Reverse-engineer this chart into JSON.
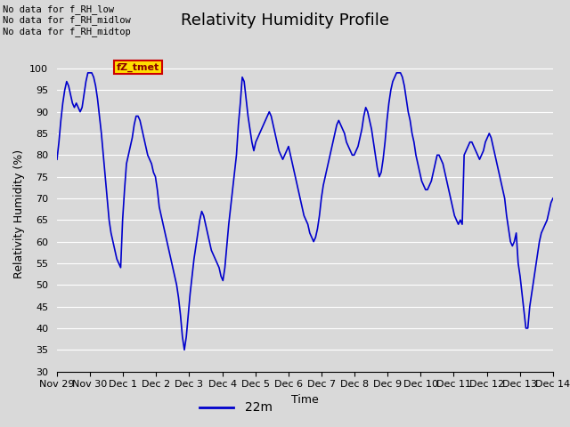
{
  "title": "Relativity Humidity Profile",
  "xlabel": "Time",
  "ylabel": "Relativity Humidity (%)",
  "legend_label": "22m",
  "ylim": [
    30,
    103
  ],
  "yticks": [
    30,
    35,
    40,
    45,
    50,
    55,
    60,
    65,
    70,
    75,
    80,
    85,
    90,
    95,
    100
  ],
  "line_color": "#0000cc",
  "line_width": 1.2,
  "bg_color": "#d9d9d9",
  "plot_bg_color": "#d9d9d9",
  "legend_bg": "#ffffff",
  "annotation_text": "No data for f_RH_low\nNo data for f_RH_midlow\nNo data for f_RH_midtop",
  "tooltip_text": "fZ_tmet",
  "x_tick_labels": [
    "Nov 29",
    "Nov 30",
    "Dec 1",
    "Dec 2",
    "Dec 3",
    "Dec 4",
    "Dec 5",
    "Dec 6",
    "Dec 7",
    "Dec 8",
    "Dec 9",
    "Dec 10",
    "Dec 11",
    "Dec 12",
    "Dec 13",
    "Dec 14"
  ],
  "x_tick_positions": [
    0,
    1,
    2,
    3,
    4,
    5,
    6,
    7,
    8,
    9,
    10,
    11,
    12,
    13,
    14,
    15
  ],
  "grid_color": "#ffffff",
  "grid_linewidth": 0.8,
  "title_fontsize": 13,
  "axis_fontsize": 9,
  "tick_fontsize": 8,
  "humidity_data": [
    79,
    83,
    88,
    92,
    95,
    97,
    96,
    94,
    92,
    91,
    92,
    91,
    90,
    91,
    94,
    97,
    99,
    99,
    99,
    98,
    96,
    93,
    89,
    85,
    80,
    75,
    70,
    65,
    62,
    60,
    58,
    56,
    55,
    54,
    65,
    72,
    78,
    80,
    82,
    84,
    87,
    89,
    89,
    88,
    86,
    84,
    82,
    80,
    79,
    78,
    76,
    75,
    72,
    68,
    66,
    64,
    62,
    60,
    58,
    56,
    54,
    52,
    50,
    47,
    43,
    38,
    35,
    38,
    43,
    48,
    52,
    56,
    59,
    62,
    65,
    67,
    66,
    64,
    62,
    60,
    58,
    57,
    56,
    55,
    54,
    52,
    51,
    54,
    59,
    64,
    68,
    72,
    76,
    80,
    87,
    92,
    98,
    97,
    93,
    89,
    86,
    83,
    81,
    83,
    84,
    85,
    86,
    87,
    88,
    89,
    90,
    89,
    87,
    85,
    83,
    81,
    80,
    79,
    80,
    81,
    82,
    80,
    78,
    76,
    74,
    72,
    70,
    68,
    66,
    65,
    64,
    62,
    61,
    60,
    61,
    63,
    66,
    70,
    73,
    75,
    77,
    79,
    81,
    83,
    85,
    87,
    88,
    87,
    86,
    85,
    83,
    82,
    81,
    80,
    80,
    81,
    82,
    84,
    86,
    89,
    91,
    90,
    88,
    86,
    83,
    80,
    77,
    75,
    76,
    79,
    83,
    88,
    92,
    95,
    97,
    98,
    99,
    99,
    99,
    98,
    96,
    93,
    90,
    88,
    85,
    83,
    80,
    78,
    76,
    74,
    73,
    72,
    72,
    73,
    74,
    76,
    78,
    80,
    80,
    79,
    78,
    76,
    74,
    72,
    70,
    68,
    66,
    65,
    64,
    65,
    64,
    80,
    81,
    82,
    83,
    83,
    82,
    81,
    80,
    79,
    80,
    81,
    83,
    84,
    85,
    84,
    82,
    80,
    78,
    76,
    74,
    72,
    70,
    66,
    63,
    60,
    59,
    60,
    62,
    55,
    52,
    48,
    44,
    40,
    40,
    45,
    48,
    51,
    54,
    57,
    60,
    62,
    63,
    64,
    65,
    67,
    69,
    70
  ]
}
